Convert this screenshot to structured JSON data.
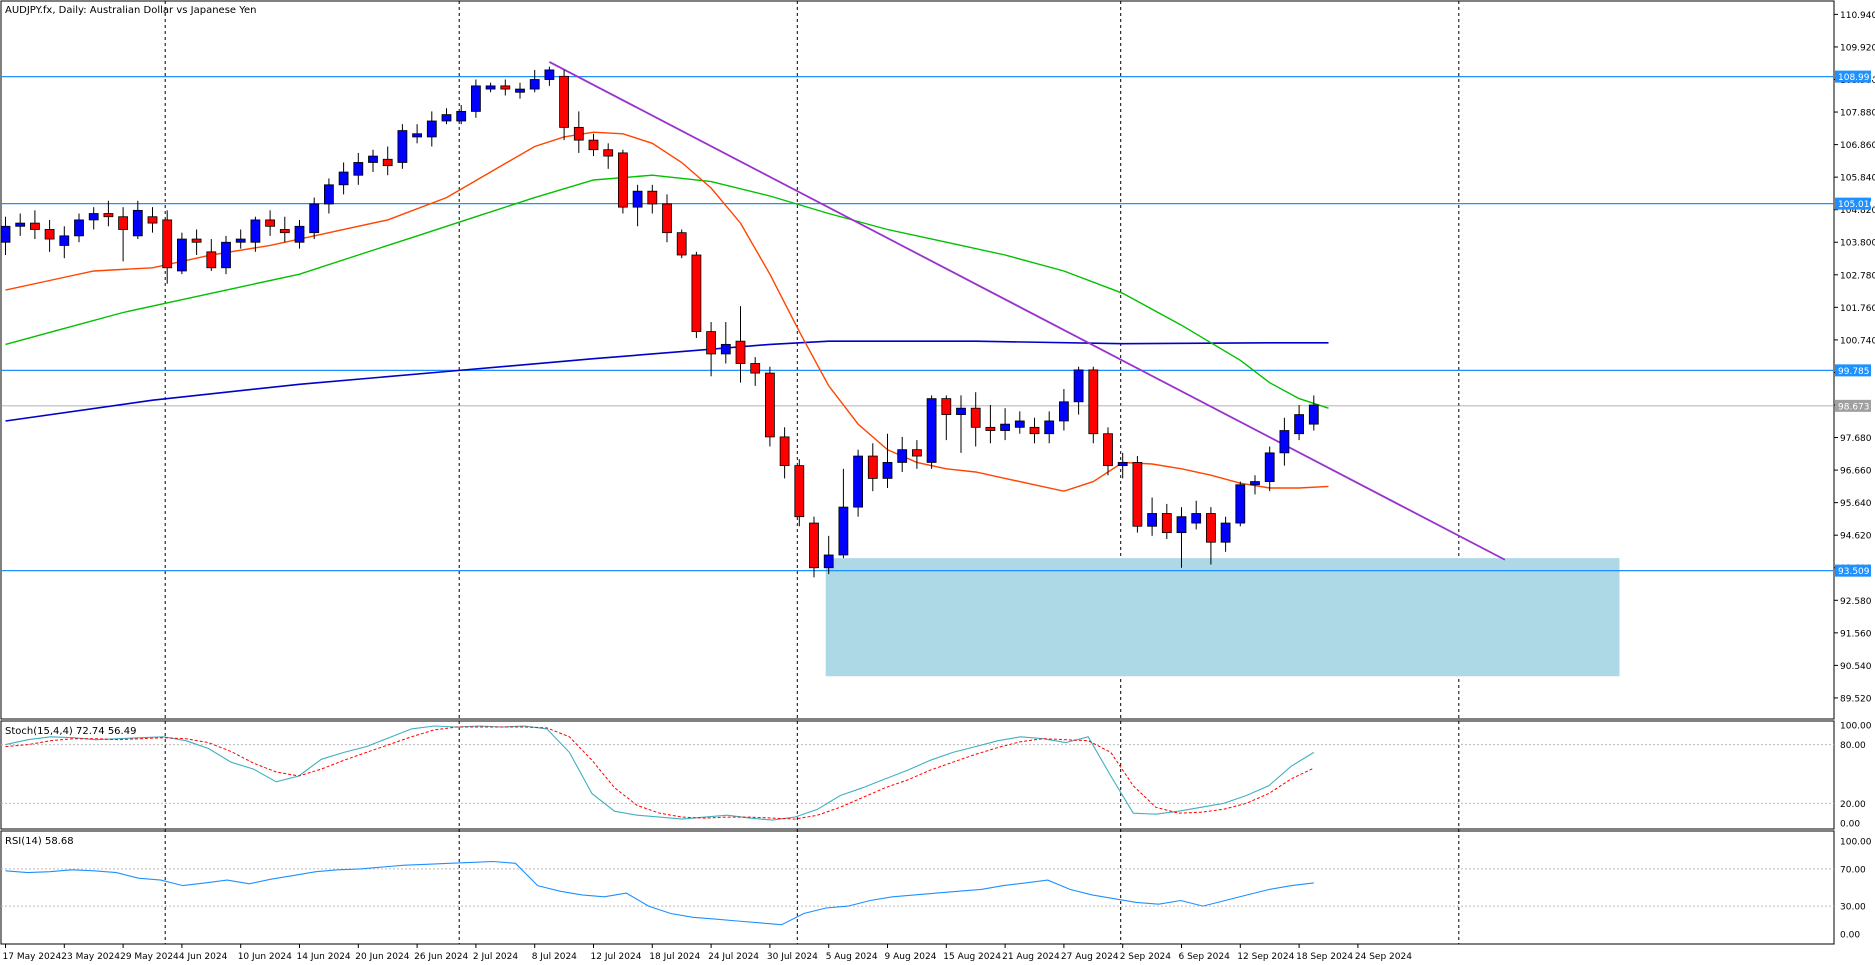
{
  "header": {
    "main_title": "AUDJPY.fx, Daily:  Australian Dollar vs Japanese Yen",
    "stoch_title": "Stoch(15,4,4) 72.74 56.49",
    "rsi_title": "RSI(14) 58.68"
  },
  "colors": {
    "bull": "#0000ff",
    "bear": "#ff0000",
    "ma_fast": "#ff4500",
    "ma_mid": "#00c000",
    "ma_slow": "#0000c8",
    "trendline": "#9932cc",
    "hline": "#1e90ff",
    "zone": "#add8e6",
    "stoch_main": "#40b0c0",
    "stoch_signal": "#ff0000",
    "rsi": "#1e90ff"
  },
  "main_axis": {
    "ticks": [
      "110.940",
      "109.920",
      "108.900",
      "107.880",
      "106.860",
      "105.840",
      "104.820",
      "103.800",
      "102.780",
      "101.760",
      "100.740",
      "99.720",
      "98.700",
      "97.680",
      "96.660",
      "95.640",
      "94.620",
      "93.600",
      "92.580",
      "91.560",
      "90.540",
      "89.520"
    ],
    "tick_values": [
      110.94,
      109.92,
      108.9,
      107.88,
      106.86,
      105.84,
      104.82,
      103.8,
      102.78,
      101.76,
      100.74,
      99.72,
      98.7,
      97.68,
      96.66,
      95.64,
      94.62,
      93.6,
      92.58,
      91.56,
      90.54,
      89.52
    ],
    "range": [
      88.86,
      111.36
    ]
  },
  "stoch_axis": {
    "ticks": [
      "100.00",
      "80.00",
      "20.00",
      "0.00"
    ],
    "values": [
      100,
      80,
      20,
      0
    ]
  },
  "rsi_axis": {
    "ticks": [
      "100.00",
      "70.00",
      "30.00",
      "0.00"
    ],
    "values": [
      100,
      70,
      30,
      0
    ]
  },
  "x_axis": {
    "labels": [
      "17 May 2024",
      "23 May 2024",
      "29 May 2024",
      "4 Jun 2024",
      "10 Jun 2024",
      "14 Jun 2024",
      "20 Jun 2024",
      "26 Jun 2024",
      "2 Jul 2024",
      "8 Jul 2024",
      "12 Jul 2024",
      "18 Jul 2024",
      "24 Jul 2024",
      "30 Jul 2024",
      "5 Aug 2024",
      "9 Aug 2024",
      "15 Aug 2024",
      "21 Aug 2024",
      "27 Aug 2024",
      "2 Sep 2024",
      "6 Sep 2024",
      "12 Sep 2024",
      "18 Sep 2024",
      "24 Sep 2024"
    ],
    "label_bars": [
      0,
      4,
      8,
      12,
      16,
      20,
      24,
      28,
      32,
      36,
      40,
      44,
      48,
      52,
      56,
      60,
      64,
      68,
      72,
      76,
      80,
      84,
      88,
      92
    ],
    "separator_bars": [
      11,
      31,
      54,
      76,
      99
    ]
  },
  "levels": [
    {
      "value": 108.991,
      "label": "108.991"
    },
    {
      "value": 105.01,
      "label": "105.010"
    },
    {
      "value": 99.785,
      "label": "99.785"
    },
    {
      "value": 93.509,
      "label": "93.509"
    }
  ],
  "current_price": {
    "value": 98.673,
    "label": "98.673"
  },
  "zone": {
    "bar_from": 56,
    "bar_to": 110,
    "top": 93.9,
    "bottom": 90.2
  },
  "chart_data": {
    "type": "candlestick",
    "title": "AUDJPY.fx, Daily:  Australian Dollar vs Japanese Yen",
    "series_names": {
      "stoch": "Stoch(15,4,4) 72.74 56.49",
      "rsi": "RSI(14) 58.68"
    },
    "candles": [
      [
        103.8,
        104.3,
        104.6,
        103.4
      ],
      [
        104.3,
        104.4,
        104.7,
        104.0
      ],
      [
        104.4,
        104.2,
        104.8,
        103.9
      ],
      [
        104.2,
        103.9,
        104.5,
        103.5
      ],
      [
        103.7,
        104.0,
        104.3,
        103.3
      ],
      [
        104.0,
        104.5,
        104.7,
        103.8
      ],
      [
        104.5,
        104.7,
        104.9,
        104.2
      ],
      [
        104.7,
        104.6,
        105.1,
        104.3
      ],
      [
        104.6,
        104.2,
        104.9,
        103.2
      ],
      [
        104.0,
        104.8,
        105.1,
        103.9
      ],
      [
        104.6,
        104.4,
        104.9,
        104.1
      ],
      [
        104.5,
        103.0,
        104.8,
        102.5
      ],
      [
        102.9,
        103.9,
        104.1,
        102.8
      ],
      [
        103.9,
        103.8,
        104.2,
        103.4
      ],
      [
        103.5,
        103.0,
        103.9,
        102.9
      ],
      [
        103.0,
        103.8,
        104.0,
        102.8
      ],
      [
        103.8,
        103.9,
        104.2,
        103.6
      ],
      [
        103.8,
        104.5,
        104.6,
        103.5
      ],
      [
        104.5,
        104.3,
        104.8,
        104.0
      ],
      [
        104.2,
        104.1,
        104.6,
        103.8
      ],
      [
        103.8,
        104.3,
        104.5,
        103.6
      ],
      [
        104.1,
        105.0,
        105.2,
        103.9
      ],
      [
        105.0,
        105.6,
        105.8,
        104.7
      ],
      [
        105.6,
        106.0,
        106.3,
        105.3
      ],
      [
        105.9,
        106.3,
        106.6,
        105.6
      ],
      [
        106.3,
        106.5,
        106.7,
        106.0
      ],
      [
        106.4,
        106.2,
        106.8,
        105.9
      ],
      [
        106.3,
        107.3,
        107.5,
        106.1
      ],
      [
        107.1,
        107.2,
        107.5,
        106.9
      ],
      [
        107.1,
        107.6,
        107.9,
        106.8
      ],
      [
        107.6,
        107.8,
        108.0,
        107.5
      ],
      [
        107.6,
        107.9,
        108.1,
        107.5
      ],
      [
        107.9,
        108.7,
        108.9,
        107.7
      ],
      [
        108.6,
        108.7,
        108.8,
        108.5
      ],
      [
        108.7,
        108.6,
        108.9,
        108.4
      ],
      [
        108.5,
        108.6,
        108.8,
        108.3
      ],
      [
        108.6,
        108.9,
        109.2,
        108.5
      ],
      [
        108.9,
        109.2,
        109.3,
        108.7
      ],
      [
        109.0,
        107.4,
        109.2,
        107.0
      ],
      [
        107.4,
        107.0,
        107.9,
        106.6
      ],
      [
        107.0,
        106.7,
        107.2,
        106.5
      ],
      [
        106.7,
        106.5,
        106.9,
        106.1
      ],
      [
        106.6,
        104.9,
        106.7,
        104.7
      ],
      [
        104.9,
        105.4,
        105.6,
        104.3
      ],
      [
        105.4,
        105.0,
        105.6,
        104.7
      ],
      [
        105.0,
        104.1,
        105.3,
        103.8
      ],
      [
        104.1,
        103.4,
        104.2,
        103.3
      ],
      [
        103.4,
        101.0,
        103.5,
        100.8
      ],
      [
        101.0,
        100.3,
        101.3,
        99.6
      ],
      [
        100.3,
        100.6,
        101.3,
        100.0
      ],
      [
        100.7,
        100.0,
        101.8,
        99.4
      ],
      [
        100.0,
        99.7,
        100.2,
        99.3
      ],
      [
        99.7,
        97.7,
        99.9,
        97.4
      ],
      [
        97.7,
        96.8,
        98.0,
        96.4
      ],
      [
        96.8,
        95.2,
        97.0,
        94.9
      ],
      [
        95.0,
        93.6,
        95.2,
        93.3
      ],
      [
        93.6,
        94.0,
        94.6,
        93.4
      ],
      [
        94.0,
        95.5,
        96.7,
        93.9
      ],
      [
        95.5,
        97.1,
        97.3,
        95.2
      ],
      [
        97.1,
        96.4,
        97.5,
        96.0
      ],
      [
        96.4,
        96.9,
        97.8,
        96.1
      ],
      [
        96.9,
        97.3,
        97.7,
        96.6
      ],
      [
        97.3,
        97.1,
        97.6,
        96.7
      ],
      [
        96.9,
        98.9,
        99.0,
        96.7
      ],
      [
        98.9,
        98.4,
        99.0,
        97.6
      ],
      [
        98.4,
        98.6,
        99.0,
        97.2
      ],
      [
        98.6,
        98.0,
        99.1,
        97.4
      ],
      [
        98.0,
        97.9,
        98.7,
        97.5
      ],
      [
        97.9,
        98.1,
        98.6,
        97.6
      ],
      [
        98.0,
        98.2,
        98.5,
        97.8
      ],
      [
        98.0,
        97.8,
        98.3,
        97.5
      ],
      [
        97.8,
        98.2,
        98.5,
        97.5
      ],
      [
        98.2,
        98.8,
        99.2,
        97.9
      ],
      [
        98.8,
        99.8,
        99.9,
        98.4
      ],
      [
        99.8,
        97.8,
        99.9,
        97.5
      ],
      [
        97.8,
        96.8,
        98.0,
        96.5
      ],
      [
        96.8,
        96.9,
        97.2,
        96.4
      ],
      [
        96.9,
        94.9,
        97.1,
        94.7
      ],
      [
        94.9,
        95.3,
        95.8,
        94.6
      ],
      [
        95.3,
        94.7,
        95.6,
        94.5
      ],
      [
        94.7,
        95.2,
        95.5,
        93.6
      ],
      [
        95.0,
        95.3,
        95.7,
        94.8
      ],
      [
        95.3,
        94.4,
        95.5,
        93.7
      ],
      [
        94.4,
        95.0,
        95.2,
        94.1
      ],
      [
        95.0,
        96.2,
        96.3,
        94.9
      ],
      [
        96.2,
        96.3,
        96.5,
        95.9
      ],
      [
        96.3,
        97.2,
        97.4,
        96.0
      ],
      [
        97.2,
        97.9,
        98.3,
        96.8
      ],
      [
        97.8,
        98.4,
        98.7,
        97.6
      ],
      [
        98.1,
        98.7,
        99.0,
        97.9
      ]
    ],
    "ma_fast": [
      [
        0,
        102.3
      ],
      [
        3,
        102.6
      ],
      [
        6,
        102.9
      ],
      [
        10,
        103.0
      ],
      [
        14,
        103.4
      ],
      [
        18,
        103.7
      ],
      [
        22,
        104.1
      ],
      [
        26,
        104.5
      ],
      [
        30,
        105.2
      ],
      [
        33,
        106.0
      ],
      [
        36,
        106.8
      ],
      [
        38,
        107.1
      ],
      [
        40,
        107.25
      ],
      [
        42,
        107.2
      ],
      [
        44,
        106.9
      ],
      [
        46,
        106.3
      ],
      [
        48,
        105.5
      ],
      [
        50,
        104.4
      ],
      [
        52,
        102.8
      ],
      [
        54,
        101.0
      ],
      [
        56,
        99.3
      ],
      [
        58,
        98.1
      ],
      [
        60,
        97.3
      ],
      [
        62,
        96.9
      ],
      [
        64,
        96.7
      ],
      [
        66,
        96.6
      ],
      [
        68,
        96.4
      ],
      [
        70,
        96.2
      ],
      [
        72,
        96.0
      ],
      [
        74,
        96.3
      ],
      [
        76,
        96.9
      ],
      [
        78,
        96.85
      ],
      [
        80,
        96.7
      ],
      [
        82,
        96.5
      ],
      [
        84,
        96.25
      ],
      [
        86,
        96.1
      ],
      [
        88,
        96.1
      ],
      [
        90,
        96.15
      ]
    ],
    "ma_mid": [
      [
        0,
        100.6
      ],
      [
        4,
        101.1
      ],
      [
        8,
        101.6
      ],
      [
        12,
        102.0
      ],
      [
        16,
        102.4
      ],
      [
        20,
        102.8
      ],
      [
        24,
        103.4
      ],
      [
        28,
        104.0
      ],
      [
        32,
        104.6
      ],
      [
        36,
        105.2
      ],
      [
        40,
        105.75
      ],
      [
        44,
        105.9
      ],
      [
        48,
        105.7
      ],
      [
        52,
        105.25
      ],
      [
        56,
        104.7
      ],
      [
        60,
        104.2
      ],
      [
        64,
        103.8
      ],
      [
        68,
        103.4
      ],
      [
        72,
        102.9
      ],
      [
        76,
        102.2
      ],
      [
        80,
        101.2
      ],
      [
        84,
        100.1
      ],
      [
        86,
        99.4
      ],
      [
        88,
        98.9
      ],
      [
        90,
        98.6
      ]
    ],
    "ma_slow": [
      [
        0,
        98.2
      ],
      [
        10,
        98.85
      ],
      [
        20,
        99.35
      ],
      [
        30,
        99.75
      ],
      [
        40,
        100.15
      ],
      [
        48,
        100.45
      ],
      [
        52,
        100.6
      ],
      [
        56,
        100.7
      ],
      [
        66,
        100.7
      ],
      [
        76,
        100.62
      ],
      [
        86,
        100.65
      ],
      [
        90,
        100.65
      ]
    ],
    "trendline": {
      "from": [
        37,
        109.45
      ],
      "to": [
        102,
        93.85
      ]
    },
    "stoch_main": [
      80,
      85,
      88,
      87,
      85,
      86,
      87,
      88,
      84,
      76,
      62,
      55,
      42,
      48,
      65,
      72,
      78,
      87,
      96,
      99,
      98,
      99,
      98,
      99,
      96,
      72,
      30,
      12,
      8,
      6,
      4,
      6,
      8,
      5,
      3,
      6,
      14,
      28,
      36,
      45,
      54,
      64,
      72,
      78,
      84,
      88,
      86,
      82,
      88,
      48,
      10,
      9,
      12,
      16,
      20,
      28,
      38,
      58,
      72
    ],
    "stoch_signal": [
      78,
      80,
      84,
      86,
      86,
      85,
      86,
      87,
      86,
      82,
      73,
      61,
      52,
      48,
      55,
      64,
      72,
      80,
      88,
      95,
      98,
      98,
      98,
      98,
      97,
      88,
      64,
      36,
      18,
      10,
      6,
      5,
      6,
      6,
      5,
      4,
      8,
      16,
      26,
      36,
      44,
      54,
      62,
      70,
      77,
      83,
      86,
      85,
      84,
      72,
      38,
      16,
      10,
      11,
      14,
      20,
      30,
      45,
      56
    ],
    "rsi": [
      68,
      66,
      67,
      69,
      68,
      66,
      60,
      58,
      52,
      55,
      58,
      54,
      59,
      63,
      67,
      69,
      70,
      72,
      74,
      75,
      76,
      77,
      78,
      76,
      52,
      46,
      42,
      40,
      44,
      30,
      22,
      18,
      16,
      14,
      12,
      10,
      22,
      28,
      30,
      36,
      40,
      42,
      44,
      46,
      48,
      52,
      55,
      58,
      48,
      42,
      38,
      34,
      32,
      36,
      30,
      36,
      42,
      48,
      52,
      55
    ]
  }
}
